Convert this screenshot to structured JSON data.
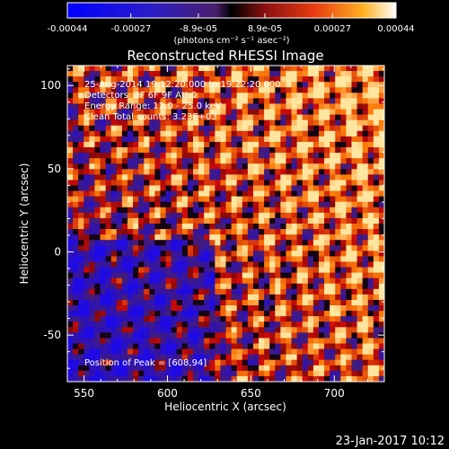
{
  "chart_data": {
    "type": "heatmap",
    "title": "Reconstructed RHESSI Image",
    "xlabel": "Heliocentric X (arcsec)",
    "ylabel": "Heliocentric Y (arcsec)",
    "xlim": [
      540,
      730
    ],
    "ylim": [
      -78,
      112
    ],
    "xticks": [
      550,
      600,
      650,
      700
    ],
    "yticks": [
      -50,
      0,
      50,
      100
    ],
    "colorbar": {
      "ticks": [
        "-0.00044",
        "-0.00027",
        "-8.9e-05",
        "8.9e-05",
        "0.00027",
        "0.00044"
      ],
      "range": [
        -0.00044,
        0.00044
      ],
      "unit_label": "(photons cm⁻² s⁻¹ asec⁻²)"
    },
    "annotations": [
      "25-Aug-2014 19:12:20.000 to 19:22:20.000",
      "Detectors: 3F 6F 9F Att 0",
      "Energy Range: 12.0 - 25.0 keV",
      "Clean    Total counts: 3.23E+03"
    ],
    "peak_label": "Position of Peak = [608,94]",
    "peak": [
      608,
      94
    ],
    "grid": false
  },
  "footer": {
    "timestamp": "23-Jan-2017 10:12"
  },
  "colors": {
    "background": "#000000",
    "text": "#ffffff"
  }
}
